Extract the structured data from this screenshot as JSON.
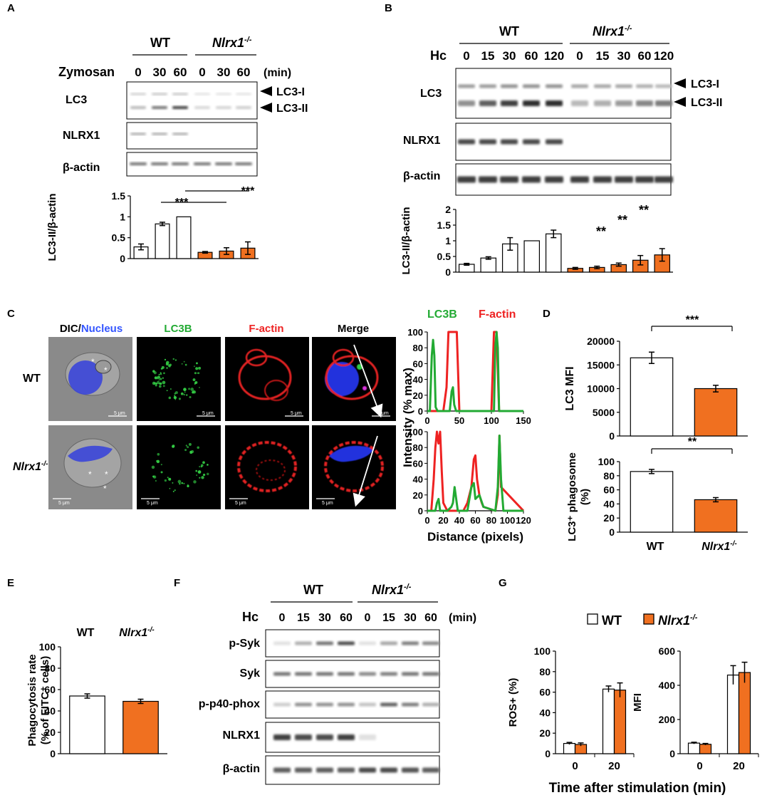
{
  "colors": {
    "ko_fill": "#f07020",
    "wt_fill": "#ffffff",
    "lc3b_green": "#22aa33",
    "factin_red": "#ee2222",
    "nucleus_blue": "#3355ff",
    "sig_line": "#000000"
  },
  "panels": {
    "A": {
      "letter": "A",
      "wt_label": "WT",
      "ko_label": "Nlrx1",
      "ko_sup": "-/-",
      "stim_label": "Zymosan",
      "times": [
        "0",
        "30",
        "60",
        "0",
        "30",
        "60"
      ],
      "unit": "(min)",
      "blots": [
        "LC3",
        "NLRX1",
        "β-actin"
      ],
      "arrows": [
        "LC3-I",
        "LC3-II"
      ],
      "significance": [
        "***",
        "***"
      ]
    },
    "B": {
      "letter": "B",
      "wt_label": "WT",
      "ko_label": "Nlrx1",
      "ko_sup": "-/-",
      "stim_label": "Hc",
      "times": [
        "0",
        "15",
        "30",
        "60",
        "120",
        "0",
        "15",
        "30",
        "60",
        "120"
      ],
      "blots": [
        "LC3",
        "NLRX1",
        "β-actin"
      ],
      "arrows": [
        "LC3-I",
        "LC3-II"
      ],
      "significance": [
        "**",
        "**",
        "**"
      ]
    },
    "C": {
      "letter": "C",
      "col_titles": [
        "DIC/",
        "Nucleus",
        "LC3B",
        "F-actin",
        "Merge"
      ],
      "row_labels": [
        "WT",
        "Nlrx1"
      ],
      "ko_sup": "-/-",
      "scale_bar": "5 μm",
      "legend": [
        "LC3B",
        "F-actin"
      ]
    },
    "D": {
      "letter": "D",
      "categories": [
        "WT",
        "Nlrx1"
      ],
      "ko_sup": "-/-",
      "significance": [
        "***",
        "**"
      ]
    },
    "E": {
      "letter": "E",
      "categories": [
        "WT",
        "Nlrx1"
      ],
      "ko_sup": "-/-"
    },
    "F": {
      "letter": "F",
      "wt_label": "WT",
      "ko_label": "Nlrx1",
      "ko_sup": "-/-",
      "stim_label": "Hc",
      "times": [
        "0",
        "15",
        "30",
        "60",
        "0",
        "15",
        "30",
        "60"
      ],
      "unit": "(min)",
      "blots": [
        "p-Syk",
        "Syk",
        "p-p40-phox",
        "NLRX1",
        "β-actin"
      ]
    },
    "G": {
      "letter": "G",
      "legend": [
        "WT",
        "Nlrx1"
      ],
      "ko_sup": "-/-",
      "xlabel": "Time after stimulation (min)"
    }
  },
  "chart_data": [
    {
      "type": "bar",
      "panel": "A",
      "categories": [
        "0",
        "30",
        "60",
        "0",
        "30",
        "60"
      ],
      "groups": [
        "WT",
        "WT",
        "WT",
        "Nlrx1-/-",
        "Nlrx1-/-",
        "Nlrx1-/-"
      ],
      "values": [
        0.28,
        0.83,
        1.0,
        0.15,
        0.18,
        0.25
      ],
      "errors": [
        0.07,
        0.04,
        0.0,
        0.02,
        0.08,
        0.15
      ],
      "ylabel": "LC3-II/β-actin",
      "ylim": [
        0,
        1.5
      ],
      "yticks": [
        "0",
        "0.5",
        "1",
        "1.5"
      ]
    },
    {
      "type": "bar",
      "panel": "B",
      "categories": [
        "0",
        "15",
        "30",
        "60",
        "120",
        "0",
        "15",
        "30",
        "60",
        "120"
      ],
      "groups": [
        "WT",
        "WT",
        "WT",
        "WT",
        "WT",
        "Nlrx1-/-",
        "Nlrx1-/-",
        "Nlrx1-/-",
        "Nlrx1-/-",
        "Nlrx1-/-"
      ],
      "values": [
        0.25,
        0.45,
        0.9,
        1.0,
        1.22,
        0.12,
        0.15,
        0.24,
        0.38,
        0.55
      ],
      "errors": [
        0.03,
        0.04,
        0.2,
        0.0,
        0.12,
        0.03,
        0.04,
        0.05,
        0.15,
        0.2
      ],
      "ylabel": "LC3-II/β-actin",
      "ylim": [
        0,
        2
      ],
      "yticks": [
        "0",
        "0.5",
        "1",
        "1.5",
        "2"
      ]
    },
    {
      "type": "line",
      "panel": "C-WT",
      "xlabel": "",
      "ylabel": "",
      "xlim": [
        0,
        150
      ],
      "ylim": [
        0,
        100
      ],
      "xticks": [
        "0",
        "50",
        "100",
        "150"
      ],
      "yticks": [
        "0",
        "20",
        "40",
        "60",
        "80",
        "100"
      ],
      "series": [
        {
          "name": "LC3B",
          "color": "#22aa33",
          "x": [
            0,
            4,
            7,
            9,
            11,
            13,
            16,
            30,
            35,
            38,
            40,
            42,
            45,
            90,
            104,
            106,
            108,
            110,
            112,
            150
          ],
          "y": [
            0,
            0,
            70,
            90,
            70,
            5,
            0,
            0,
            0,
            25,
            30,
            8,
            0,
            0,
            0,
            80,
            100,
            80,
            0,
            0
          ]
        },
        {
          "name": "F-actin",
          "color": "#ee2222",
          "x": [
            0,
            25,
            30,
            33,
            36,
            42,
            46,
            50,
            100,
            104,
            106,
            108,
            112,
            150
          ],
          "y": [
            0,
            0,
            30,
            100,
            100,
            100,
            100,
            0,
            0,
            100,
            100,
            100,
            0,
            0
          ]
        }
      ]
    },
    {
      "type": "line",
      "panel": "C-KO",
      "xlabel": "Distance (pixels)",
      "ylabel": "Intensity (% max)",
      "xlim": [
        0,
        120
      ],
      "ylim": [
        0,
        100
      ],
      "xticks": [
        "0",
        "20",
        "40",
        "60",
        "80",
        "100",
        "120"
      ],
      "yticks": [
        "0",
        "20",
        "40",
        "60",
        "80",
        "100"
      ],
      "series": [
        {
          "name": "LC3B",
          "color": "#22aa33",
          "x": [
            0,
            10,
            12,
            14,
            16,
            25,
            30,
            32,
            34,
            38,
            50,
            55,
            58,
            60,
            65,
            70,
            85,
            88,
            90,
            92,
            95,
            120
          ],
          "y": [
            0,
            0,
            10,
            15,
            0,
            0,
            5,
            10,
            30,
            0,
            0,
            30,
            35,
            15,
            20,
            5,
            0,
            30,
            95,
            40,
            0,
            0
          ]
        },
        {
          "name": "F-actin",
          "color": "#ee2222",
          "x": [
            0,
            5,
            8,
            10,
            12,
            14,
            16,
            18,
            20,
            25,
            45,
            50,
            55,
            58,
            60,
            62,
            65,
            68,
            70,
            85,
            88,
            90,
            92,
            120
          ],
          "y": [
            0,
            0,
            40,
            80,
            100,
            85,
            100,
            50,
            10,
            0,
            0,
            10,
            30,
            65,
            70,
            40,
            20,
            10,
            5,
            0,
            20,
            95,
            30,
            0
          ]
        }
      ]
    },
    {
      "type": "bar",
      "panel": "D-top",
      "categories": [
        "WT",
        "Nlrx1-/-"
      ],
      "values": [
        16500,
        10000
      ],
      "errors": [
        1200,
        700
      ],
      "ylabel": "LC3 MFI",
      "ylim": [
        0,
        20000
      ],
      "yticks": [
        "0",
        "5000",
        "10000",
        "15000",
        "20000"
      ]
    },
    {
      "type": "bar",
      "panel": "D-bottom",
      "categories": [
        "WT",
        "Nlrx1-/-"
      ],
      "values": [
        86,
        46
      ],
      "errors": [
        3,
        3
      ],
      "ylabel": "LC3⁺ phagosome (%)",
      "ylim": [
        0,
        100
      ],
      "yticks": [
        "0",
        "20",
        "40",
        "60",
        "80",
        "100"
      ]
    },
    {
      "type": "bar",
      "panel": "E",
      "categories": [
        "WT",
        "Nlrx1-/-"
      ],
      "values": [
        54,
        49
      ],
      "errors": [
        2,
        2
      ],
      "ylabel": "Phagocytosis rate (% of FITC⁺ cells)",
      "ylim": [
        0,
        100
      ],
      "yticks": [
        "0",
        "20",
        "40",
        "60",
        "80",
        "100"
      ]
    },
    {
      "type": "bar",
      "panel": "G-left",
      "categories": [
        "0",
        "20"
      ],
      "series": [
        {
          "name": "WT",
          "values": [
            10,
            63
          ],
          "errors": [
            1,
            3
          ]
        },
        {
          "name": "Nlrx1-/-",
          "values": [
            9,
            62
          ],
          "errors": [
            1.5,
            7
          ]
        }
      ],
      "ylabel": "ROS+ (%)",
      "ylim": [
        0,
        100
      ],
      "yticks": [
        "0",
        "20",
        "40",
        "60",
        "80",
        "100"
      ]
    },
    {
      "type": "bar",
      "panel": "G-right",
      "categories": [
        "0",
        "20"
      ],
      "series": [
        {
          "name": "WT",
          "values": [
            62,
            460
          ],
          "errors": [
            5,
            55
          ]
        },
        {
          "name": "Nlrx1-/-",
          "values": [
            55,
            475
          ],
          "errors": [
            5,
            60
          ]
        }
      ],
      "ylabel": "MFI",
      "ylim": [
        0,
        600
      ],
      "yticks": [
        "0",
        "200",
        "400",
        "600"
      ]
    }
  ]
}
